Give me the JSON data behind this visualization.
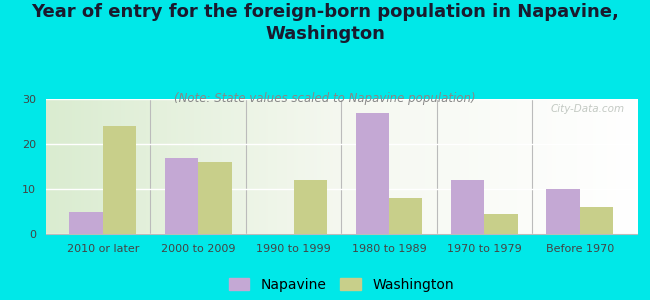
{
  "title": "Year of entry for the foreign-born population in Napavine,\nWashington",
  "subtitle": "(Note: State values scaled to Napavine population)",
  "categories": [
    "2010 or later",
    "2000 to 2009",
    "1990 to 1999",
    "1980 to 1989",
    "1970 to 1979",
    "Before 1970"
  ],
  "napavine_values": [
    5,
    17,
    0,
    27,
    12,
    10
  ],
  "washington_values": [
    24,
    16,
    12,
    8,
    4.5,
    6
  ],
  "napavine_color": "#c4a8d4",
  "washington_color": "#c8cf8a",
  "background_color": "#00e8e8",
  "plot_bg_color": "#e8f0e0",
  "ylim": [
    0,
    30
  ],
  "yticks": [
    0,
    10,
    20,
    30
  ],
  "bar_width": 0.35,
  "title_fontsize": 13,
  "subtitle_fontsize": 8.5,
  "tick_fontsize": 8,
  "legend_fontsize": 10,
  "watermark": "City-Data.com"
}
